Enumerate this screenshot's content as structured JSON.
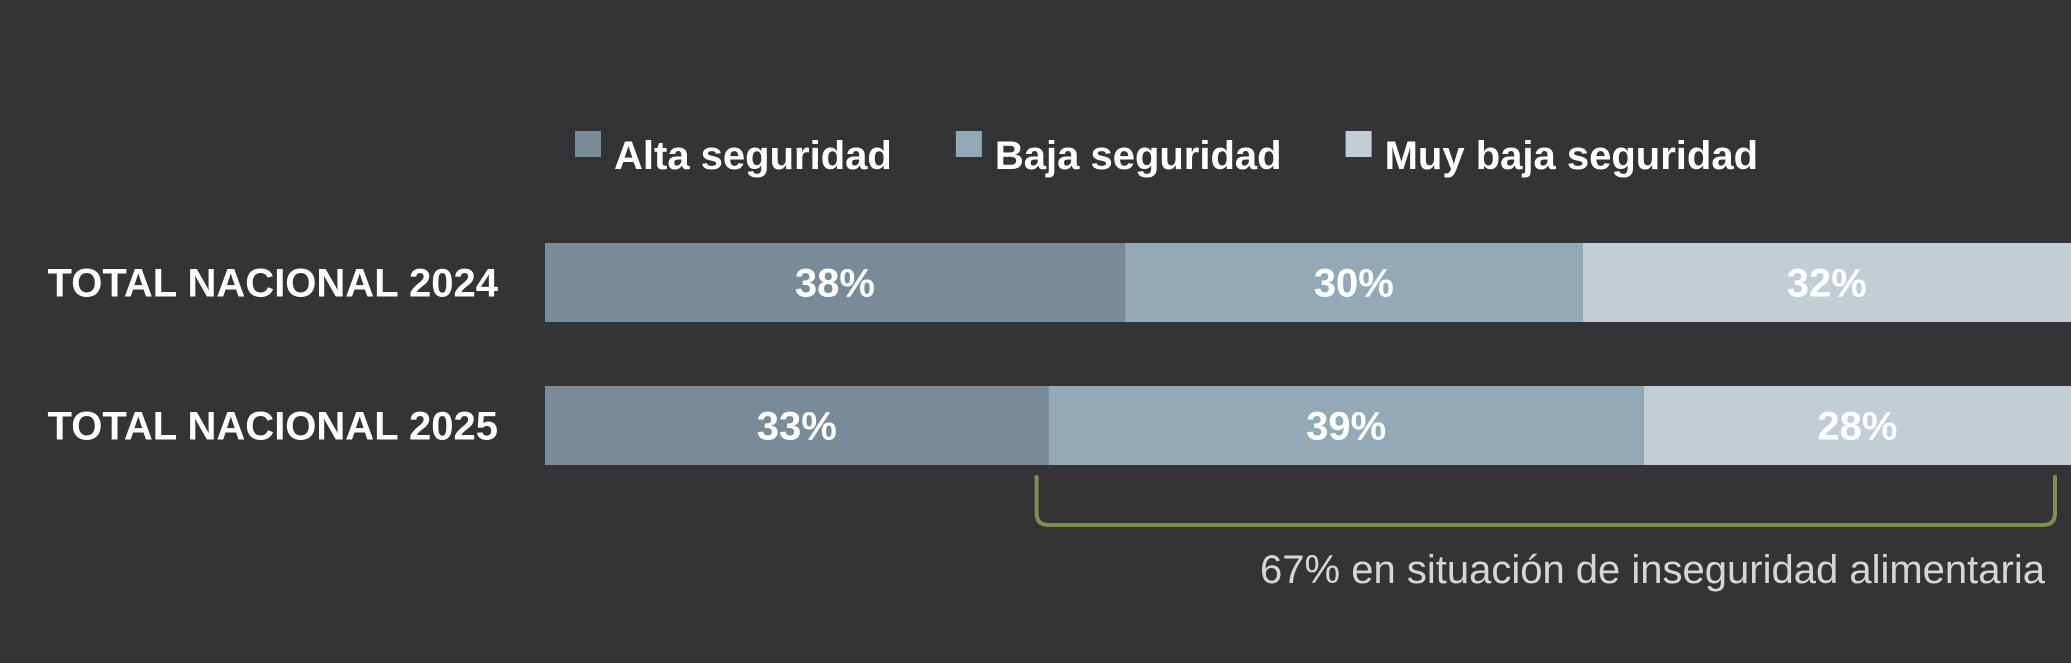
{
  "chart_data": {
    "type": "bar",
    "orientation": "horizontal",
    "stacked": true,
    "categories": [
      "TOTAL NACIONAL 2024",
      "TOTAL NACIONAL 2025"
    ],
    "series": [
      {
        "name": "Alta seguridad",
        "color": "#798b98",
        "values": [
          38,
          33
        ],
        "labels": [
          "38%",
          "33%"
        ]
      },
      {
        "name": "Baja seguridad",
        "color": "#93a9b8",
        "values": [
          30,
          39
        ],
        "labels": [
          "30%",
          "39%"
        ]
      },
      {
        "name": "Muy baja seguridad",
        "color": "#c3cdd4",
        "values": [
          32,
          28
        ],
        "labels": [
          "32%",
          "28%"
        ]
      }
    ],
    "xlim": [
      0,
      100
    ],
    "unit": "%",
    "grid": false,
    "legend_position": "top",
    "annotation": {
      "text": "67% en situación de inseguridad alimentaria",
      "bracket_color": "#7d8f54",
      "applies_to_category": "TOTAL NACIONAL 2025",
      "applies_to_series": [
        "Baja seguridad",
        "Muy baja seguridad"
      ]
    }
  }
}
